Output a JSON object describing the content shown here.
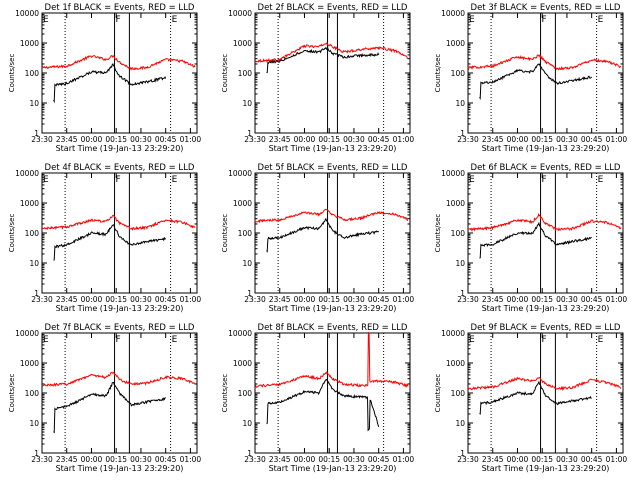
{
  "figure": {
    "marker_colors": {
      "black_series": "#000000",
      "red_series": "#ff0000"
    }
  },
  "chart_data": [
    {
      "type": "line",
      "title": "Det 1f BLACK = Events, RED = LLD",
      "xlabel": "Start Time (19-Jan-13 23:29:20)",
      "ylabel": "Counts/sec",
      "xlim": [
        "23:30",
        "01:04"
      ],
      "ylim": [
        1,
        10000
      ],
      "yscale": "log",
      "x_ticks": [
        "23:30",
        "23:45",
        "00:00",
        "00:15",
        "00:30",
        "00:45",
        "01:00"
      ],
      "y_ticks": [
        "1",
        "10",
        "100",
        "1000",
        "10000"
      ],
      "event_markers": [
        {
          "label": "E",
          "time": "23:30",
          "dotted": false
        },
        {
          "label": "",
          "time": "23:44",
          "dotted": true
        },
        {
          "label": "F",
          "time": "00:14",
          "dotted": false
        },
        {
          "label": "",
          "time": "00:23",
          "dotted": false
        },
        {
          "label": "E",
          "time": "00:48",
          "dotted": true
        }
      ],
      "series": [
        {
          "color": "#ff0000",
          "x": [
            "23:30",
            "23:45",
            "00:00",
            "00:09",
            "00:13",
            "00:17",
            "00:24",
            "00:33",
            "00:45",
            "00:55",
            "01:03"
          ],
          "values": [
            150,
            170,
            370,
            280,
            380,
            230,
            140,
            150,
            280,
            250,
            160
          ]
        },
        {
          "color": "#000000",
          "x": [
            "23:37",
            "23:38",
            "23:45",
            "00:00",
            "00:09",
            "00:13",
            "00:17",
            "00:24",
            "00:33",
            "00:45"
          ],
          "values": [
            12,
            40,
            45,
            110,
            100,
            190,
            80,
            42,
            50,
            70
          ]
        }
      ]
    },
    {
      "type": "line",
      "title": "Det 2f BLACK = Events, RED = LLD",
      "xlabel": "Start Time (19-Jan-13 23:29:20)",
      "ylabel": "Counts/sec",
      "xlim": [
        "23:30",
        "01:04"
      ],
      "ylim": [
        1,
        10000
      ],
      "yscale": "log",
      "x_ticks": [
        "23:30",
        "23:45",
        "00:00",
        "00:15",
        "00:30",
        "00:45",
        "01:00"
      ],
      "y_ticks": [
        "1",
        "10",
        "100",
        "1000",
        "10000"
      ],
      "event_markers": [
        {
          "label": "",
          "time": "23:44",
          "dotted": true
        },
        {
          "label": "",
          "time": "00:14",
          "dotted": false
        },
        {
          "label": "",
          "time": "00:20",
          "dotted": false
        },
        {
          "label": "",
          "time": "00:48",
          "dotted": true
        }
      ],
      "series": [
        {
          "color": "#ff0000",
          "x": [
            "23:30",
            "23:45",
            "00:00",
            "00:09",
            "00:13",
            "00:17",
            "00:24",
            "00:33",
            "00:45",
            "00:55",
            "01:03"
          ],
          "values": [
            250,
            280,
            800,
            750,
            1000,
            750,
            500,
            600,
            700,
            550,
            320
          ]
        },
        {
          "color": "#000000",
          "x": [
            "23:37",
            "23:38",
            "23:45",
            "00:00",
            "00:09",
            "00:13",
            "00:17",
            "00:24",
            "00:33",
            "00:45"
          ],
          "values": [
            100,
            230,
            250,
            550,
            500,
            700,
            450,
            340,
            380,
            420
          ]
        }
      ]
    },
    {
      "type": "line",
      "title": "Det 3f BLACK = Events, RED = LLD",
      "xlabel": "Start Time (19-Jan-13 23:29:20)",
      "ylabel": "Counts/sec",
      "xlim": [
        "23:30",
        "01:04"
      ],
      "ylim": [
        1,
        10000
      ],
      "yscale": "log",
      "x_ticks": [
        "23:30",
        "23:45",
        "00:00",
        "00:15",
        "00:30",
        "00:45",
        "01:00"
      ],
      "y_ticks": [
        "1",
        "10",
        "100",
        "1000",
        "10000"
      ],
      "event_markers": [
        {
          "label": "E",
          "time": "23:30",
          "dotted": false
        },
        {
          "label": "",
          "time": "23:44",
          "dotted": true
        },
        {
          "label": "F",
          "time": "00:14",
          "dotted": false
        },
        {
          "label": "",
          "time": "00:23",
          "dotted": false
        },
        {
          "label": "E",
          "time": "00:48",
          "dotted": true
        }
      ],
      "series": [
        {
          "color": "#ff0000",
          "x": [
            "23:30",
            "23:45",
            "00:00",
            "00:09",
            "00:13",
            "00:17",
            "00:24",
            "00:33",
            "00:45",
            "00:55",
            "01:03"
          ],
          "values": [
            150,
            170,
            350,
            280,
            400,
            240,
            140,
            150,
            270,
            240,
            160
          ]
        },
        {
          "color": "#000000",
          "x": [
            "23:37",
            "23:38",
            "23:45",
            "00:00",
            "00:09",
            "00:13",
            "00:17",
            "00:24",
            "00:33",
            "00:45"
          ],
          "values": [
            15,
            45,
            50,
            120,
            110,
            200,
            90,
            45,
            55,
            75
          ]
        }
      ]
    },
    {
      "type": "line",
      "title": "Det 4f BLACK = Events, RED = LLD",
      "xlabel": "Start Time (19-Jan-13 23:29:20)",
      "ylabel": "Counts/sec",
      "xlim": [
        "23:30",
        "01:04"
      ],
      "ylim": [
        1,
        10000
      ],
      "yscale": "log",
      "x_ticks": [
        "23:30",
        "23:45",
        "00:00",
        "00:15",
        "00:30",
        "00:45",
        "01:00"
      ],
      "y_ticks": [
        "1",
        "10",
        "100",
        "1000",
        "10000"
      ],
      "event_markers": [
        {
          "label": "E",
          "time": "23:30",
          "dotted": false
        },
        {
          "label": "",
          "time": "23:44",
          "dotted": true
        },
        {
          "label": "F",
          "time": "00:14",
          "dotted": false
        },
        {
          "label": "",
          "time": "00:23",
          "dotted": false
        },
        {
          "label": "E",
          "time": "00:48",
          "dotted": true
        }
      ],
      "series": [
        {
          "color": "#ff0000",
          "x": [
            "23:30",
            "23:45",
            "00:00",
            "00:09",
            "00:13",
            "00:17",
            "00:24",
            "00:33",
            "00:45",
            "00:55",
            "01:03"
          ],
          "values": [
            140,
            160,
            270,
            240,
            380,
            210,
            140,
            150,
            270,
            230,
            150
          ]
        },
        {
          "color": "#000000",
          "x": [
            "23:37",
            "23:38",
            "23:45",
            "00:00",
            "00:09",
            "00:13",
            "00:17",
            "00:24",
            "00:33",
            "00:45"
          ],
          "values": [
            12,
            35,
            40,
            100,
            90,
            200,
            75,
            40,
            50,
            65
          ]
        }
      ]
    },
    {
      "type": "line",
      "title": "Det 5f BLACK = Events, RED = LLD",
      "xlabel": "Start Time (19-Jan-13 23:29:20)",
      "ylabel": "Counts/sec",
      "xlim": [
        "23:30",
        "01:04"
      ],
      "ylim": [
        1,
        10000
      ],
      "yscale": "log",
      "x_ticks": [
        "23:30",
        "23:45",
        "00:00",
        "00:15",
        "00:30",
        "00:45",
        "01:00"
      ],
      "y_ticks": [
        "1",
        "10",
        "100",
        "1000",
        "10000"
      ],
      "event_markers": [
        {
          "label": "",
          "time": "23:44",
          "dotted": true
        },
        {
          "label": "",
          "time": "00:14",
          "dotted": false
        },
        {
          "label": "",
          "time": "00:20",
          "dotted": false
        },
        {
          "label": "",
          "time": "00:48",
          "dotted": true
        }
      ],
      "series": [
        {
          "color": "#ff0000",
          "x": [
            "23:30",
            "23:45",
            "00:00",
            "00:09",
            "00:13",
            "00:17",
            "00:24",
            "00:33",
            "00:45",
            "00:55",
            "01:03"
          ],
          "values": [
            250,
            280,
            480,
            420,
            600,
            400,
            280,
            300,
            480,
            420,
            280
          ]
        },
        {
          "color": "#000000",
          "x": [
            "23:37",
            "23:38",
            "23:45",
            "00:00",
            "00:09",
            "00:13",
            "00:17",
            "00:24",
            "00:33",
            "00:45"
          ],
          "values": [
            25,
            65,
            70,
            150,
            140,
            280,
            120,
            70,
            90,
            110
          ]
        }
      ]
    },
    {
      "type": "line",
      "title": "Det 6f BLACK = Events, RED = LLD",
      "xlabel": "Start Time (19-Jan-13 23:29:20)",
      "ylabel": "Counts/sec",
      "xlim": [
        "23:30",
        "01:04"
      ],
      "ylim": [
        1,
        10000
      ],
      "yscale": "log",
      "x_ticks": [
        "23:30",
        "23:45",
        "00:00",
        "00:15",
        "00:30",
        "00:45",
        "01:00"
      ],
      "y_ticks": [
        "1",
        "10",
        "100",
        "1000",
        "10000"
      ],
      "event_markers": [
        {
          "label": "E",
          "time": "23:30",
          "dotted": false
        },
        {
          "label": "",
          "time": "23:44",
          "dotted": true
        },
        {
          "label": "F",
          "time": "00:14",
          "dotted": false
        },
        {
          "label": "",
          "time": "00:23",
          "dotted": false
        },
        {
          "label": "E",
          "time": "00:48",
          "dotted": true
        }
      ],
      "series": [
        {
          "color": "#ff0000",
          "x": [
            "23:30",
            "23:45",
            "00:00",
            "00:09",
            "00:13",
            "00:17",
            "00:24",
            "00:33",
            "00:45",
            "00:55",
            "01:03"
          ],
          "values": [
            130,
            150,
            270,
            230,
            400,
            210,
            130,
            140,
            250,
            220,
            140
          ]
        },
        {
          "color": "#000000",
          "x": [
            "23:37",
            "23:38",
            "23:45",
            "00:00",
            "00:09",
            "00:13",
            "00:17",
            "00:24",
            "00:33",
            "00:45"
          ],
          "values": [
            14,
            38,
            42,
            100,
            95,
            210,
            80,
            42,
            52,
            68
          ]
        }
      ]
    },
    {
      "type": "line",
      "title": "Det 7f BLACK = Events, RED = LLD",
      "xlabel": "Start Time (19-Jan-13 23:29:20)",
      "ylabel": "Counts/sec",
      "xlim": [
        "23:30",
        "01:04"
      ],
      "ylim": [
        1,
        10000
      ],
      "yscale": "log",
      "x_ticks": [
        "23:30",
        "23:45",
        "00:00",
        "00:15",
        "00:30",
        "00:45",
        "01:00"
      ],
      "y_ticks": [
        "1",
        "10",
        "100",
        "1000",
        "10000"
      ],
      "event_markers": [
        {
          "label": "E",
          "time": "23:30",
          "dotted": false
        },
        {
          "label": "",
          "time": "23:44",
          "dotted": true
        },
        {
          "label": "F",
          "time": "00:14",
          "dotted": false
        },
        {
          "label": "",
          "time": "00:23",
          "dotted": false
        },
        {
          "label": "E",
          "time": "00:48",
          "dotted": true
        }
      ],
      "series": [
        {
          "color": "#ff0000",
          "x": [
            "23:30",
            "23:45",
            "00:00",
            "00:09",
            "00:13",
            "00:17",
            "00:24",
            "00:33",
            "00:45",
            "00:55",
            "01:03"
          ],
          "values": [
            180,
            200,
            400,
            330,
            500,
            280,
            200,
            210,
            340,
            300,
            200
          ]
        },
        {
          "color": "#000000",
          "x": [
            "23:37",
            "23:38",
            "23:45",
            "00:00",
            "00:09",
            "00:13",
            "00:17",
            "00:24",
            "00:33",
            "00:45"
          ],
          "values": [
            5,
            30,
            35,
            90,
            80,
            230,
            100,
            40,
            50,
            65
          ]
        }
      ]
    },
    {
      "type": "line",
      "title": "Det 8f BLACK = Events, RED = LLD",
      "xlabel": "Start Time (19-Jan-13 23:29:20)",
      "ylabel": "Counts/sec",
      "xlim": [
        "23:30",
        "01:04"
      ],
      "ylim": [
        1,
        10000
      ],
      "yscale": "log",
      "x_ticks": [
        "23:30",
        "23:45",
        "00:00",
        "00:15",
        "00:30",
        "00:45",
        "01:00"
      ],
      "y_ticks": [
        "1",
        "10",
        "100",
        "1000",
        "10000"
      ],
      "event_markers": [
        {
          "label": "",
          "time": "23:44",
          "dotted": true
        },
        {
          "label": "",
          "time": "00:14",
          "dotted": false
        },
        {
          "label": "",
          "time": "00:20",
          "dotted": false
        },
        {
          "label": "",
          "time": "00:48",
          "dotted": true
        }
      ],
      "series": [
        {
          "color": "#ff0000",
          "x": [
            "23:30",
            "23:45",
            "00:00",
            "00:09",
            "00:13",
            "00:17",
            "00:24",
            "00:33",
            "00:38",
            "00:39",
            "00:40",
            "00:45",
            "00:55",
            "01:03"
          ],
          "values": [
            170,
            190,
            370,
            300,
            500,
            300,
            200,
            180,
            180,
            10000,
            250,
            250,
            230,
            170
          ]
        },
        {
          "color": "#000000",
          "x": [
            "23:37",
            "23:38",
            "23:45",
            "00:00",
            "00:09",
            "00:13",
            "00:17",
            "00:24",
            "00:33",
            "00:38",
            "00:39",
            "00:40",
            "00:45"
          ],
          "values": [
            9,
            45,
            50,
            110,
            100,
            300,
            130,
            80,
            75,
            70,
            6,
            60,
            8
          ]
        }
      ]
    },
    {
      "type": "line",
      "title": "Det 9f BLACK = Events, RED = LLD",
      "xlabel": "Start Time (19-Jan-13 23:29:20)",
      "ylabel": "Counts/sec",
      "xlim": [
        "23:30",
        "01:04"
      ],
      "ylim": [
        1,
        10000
      ],
      "yscale": "log",
      "x_ticks": [
        "23:30",
        "23:45",
        "00:00",
        "00:15",
        "00:30",
        "00:45",
        "01:00"
      ],
      "y_ticks": [
        "1",
        "10",
        "100",
        "1000",
        "10000"
      ],
      "event_markers": [
        {
          "label": "E",
          "time": "23:30",
          "dotted": false
        },
        {
          "label": "",
          "time": "23:44",
          "dotted": true
        },
        {
          "label": "F",
          "time": "00:14",
          "dotted": false
        },
        {
          "label": "",
          "time": "00:23",
          "dotted": false
        },
        {
          "label": "E",
          "time": "00:48",
          "dotted": true
        }
      ],
      "series": [
        {
          "color": "#ff0000",
          "x": [
            "23:30",
            "23:45",
            "00:00",
            "00:09",
            "00:13",
            "00:17",
            "00:24",
            "00:33",
            "00:45",
            "00:55",
            "01:03"
          ],
          "values": [
            140,
            160,
            300,
            250,
            320,
            200,
            140,
            150,
            280,
            220,
            150
          ]
        },
        {
          "color": "#000000",
          "x": [
            "23:37",
            "23:38",
            "23:45",
            "00:00",
            "00:09",
            "00:13",
            "00:17",
            "00:24",
            "00:33",
            "00:45"
          ],
          "values": [
            20,
            45,
            50,
            100,
            95,
            220,
            80,
            45,
            55,
            70
          ]
        }
      ]
    }
  ]
}
